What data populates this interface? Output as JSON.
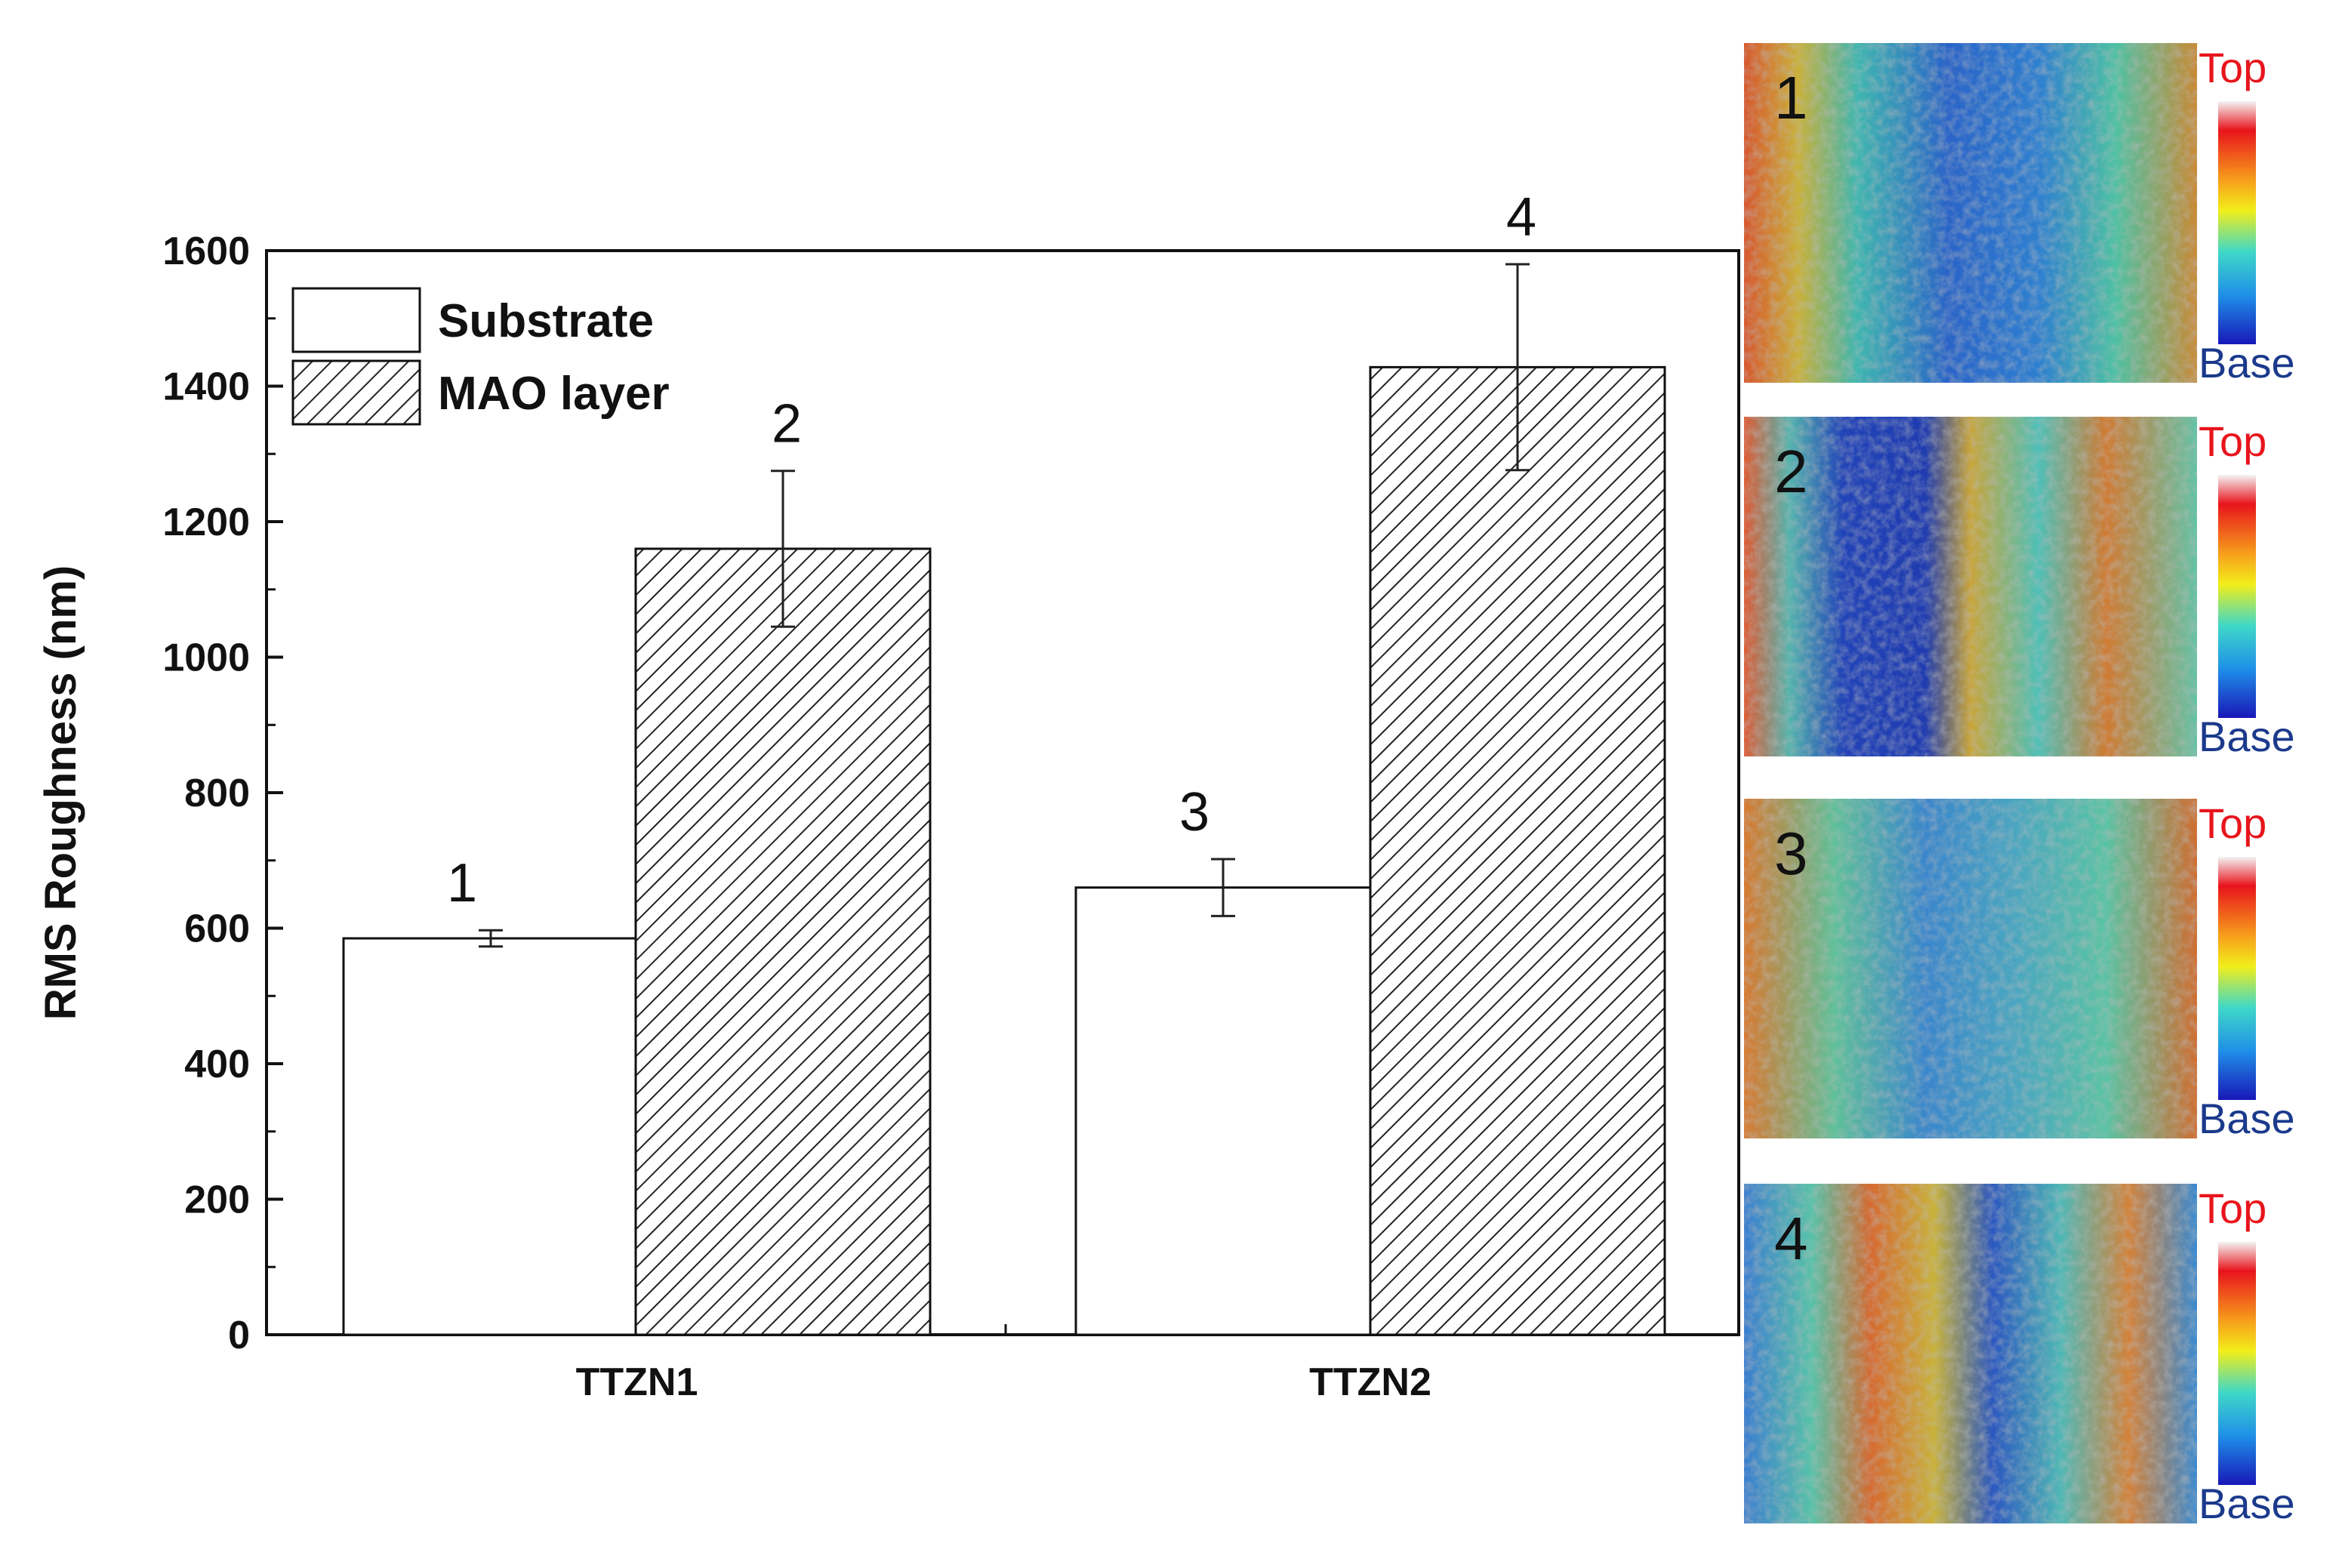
{
  "chart_data": {
    "type": "bar",
    "categories": [
      "TTZN1",
      "TTZN2"
    ],
    "series": [
      {
        "name": "Substrate",
        "values": [
          585,
          660
        ],
        "errors": [
          12,
          42
        ],
        "labels": [
          "1",
          "3"
        ],
        "fill": "none"
      },
      {
        "name": "MAO layer",
        "values": [
          1160,
          1428
        ],
        "errors": [
          115,
          152
        ],
        "labels": [
          "2",
          "4"
        ],
        "fill": "hatched"
      }
    ],
    "xlabel": "",
    "ylabel": "RMS Roughness (nm)",
    "ylim": [
      0,
      1600
    ],
    "yticks": [
      0,
      200,
      400,
      600,
      800,
      1000,
      1200,
      1400,
      1600
    ],
    "grid": false,
    "legend": "top-left"
  },
  "side_panels": [
    {
      "number": "1",
      "top_label": "Top",
      "base_label": "Base",
      "pattern": "blue-center"
    },
    {
      "number": "2",
      "top_label": "Top",
      "base_label": "Base",
      "pattern": "blue-left-band"
    },
    {
      "number": "3",
      "top_label": "Top",
      "base_label": "Base",
      "pattern": "mixed"
    },
    {
      "number": "4",
      "top_label": "Top",
      "base_label": "Base",
      "pattern": "stripes"
    }
  ],
  "colors": {
    "axis": "#111111",
    "top_label": "#e8141c",
    "base_label": "#1b3a8c",
    "colorbar": [
      "#f4f4f4",
      "#e8141c",
      "#f7a21b",
      "#f2ee1a",
      "#3fd8c8",
      "#1f8fe8",
      "#1818b8"
    ]
  }
}
